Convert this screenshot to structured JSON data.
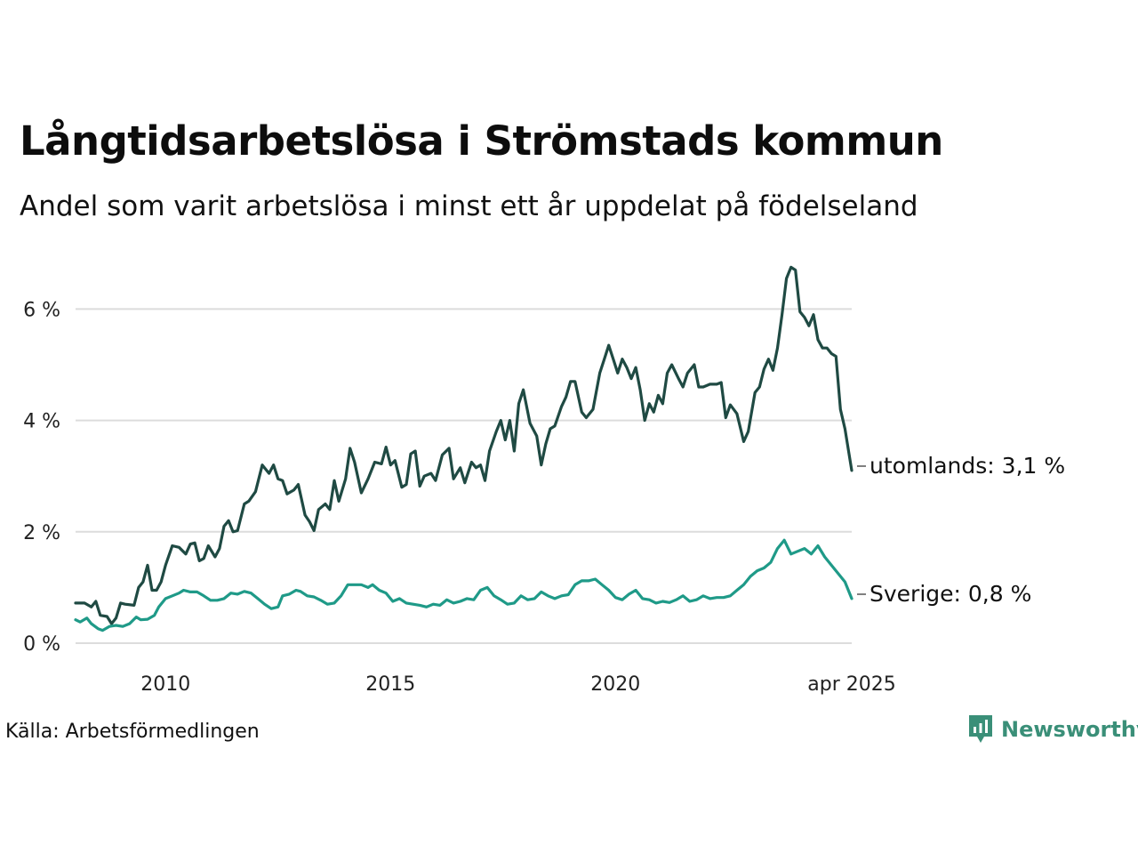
{
  "header": {
    "title": "Långtidsarbetslösa i Strömstads kommun",
    "subtitle": "Andel som varit arbetslösa i minst ett år uppdelat på födelseland"
  },
  "footer": {
    "source": "Källa: Arbetsförmedlingen",
    "brand": "Newsworthy",
    "brand_color": "#3a8f78"
  },
  "chart_data": {
    "type": "line",
    "y_ticks": [
      {
        "value": 0,
        "label": "0 %"
      },
      {
        "value": 2,
        "label": "2 %"
      },
      {
        "value": 4,
        "label": "4 %"
      },
      {
        "value": 6,
        "label": "6 %"
      }
    ],
    "x_ticks": [
      {
        "value": 2010,
        "label": "2010"
      },
      {
        "value": 2015,
        "label": "2015"
      },
      {
        "value": 2020,
        "label": "2020"
      },
      {
        "value": 2025.25,
        "label": "apr 2025"
      }
    ],
    "xlim": [
      2008.0,
      2025.25
    ],
    "ylim": [
      0,
      7
    ],
    "grid": true,
    "series": [
      {
        "name": "utomlands",
        "end_label": "utomlands: 3,1 %",
        "color": "#1f4a43",
        "points": [
          [
            2008.0,
            0.72
          ],
          [
            2008.2,
            0.72
          ],
          [
            2008.35,
            0.65
          ],
          [
            2008.45,
            0.75
          ],
          [
            2008.55,
            0.5
          ],
          [
            2008.7,
            0.48
          ],
          [
            2008.8,
            0.35
          ],
          [
            2008.9,
            0.45
          ],
          [
            2009.0,
            0.72
          ],
          [
            2009.1,
            0.7
          ],
          [
            2009.3,
            0.68
          ],
          [
            2009.4,
            1.0
          ],
          [
            2009.5,
            1.1
          ],
          [
            2009.6,
            1.4
          ],
          [
            2009.7,
            0.95
          ],
          [
            2009.8,
            0.95
          ],
          [
            2009.9,
            1.1
          ],
          [
            2010.0,
            1.4
          ],
          [
            2010.15,
            1.75
          ],
          [
            2010.3,
            1.72
          ],
          [
            2010.45,
            1.6
          ],
          [
            2010.55,
            1.78
          ],
          [
            2010.65,
            1.8
          ],
          [
            2010.75,
            1.48
          ],
          [
            2010.85,
            1.52
          ],
          [
            2010.95,
            1.75
          ],
          [
            2011.1,
            1.55
          ],
          [
            2011.2,
            1.7
          ],
          [
            2011.3,
            2.1
          ],
          [
            2011.4,
            2.2
          ],
          [
            2011.5,
            2.0
          ],
          [
            2011.6,
            2.02
          ],
          [
            2011.75,
            2.5
          ],
          [
            2011.85,
            2.55
          ],
          [
            2012.0,
            2.72
          ],
          [
            2012.15,
            3.2
          ],
          [
            2012.3,
            3.05
          ],
          [
            2012.4,
            3.2
          ],
          [
            2012.5,
            2.95
          ],
          [
            2012.6,
            2.92
          ],
          [
            2012.7,
            2.68
          ],
          [
            2012.85,
            2.75
          ],
          [
            2012.95,
            2.85
          ],
          [
            2013.1,
            2.3
          ],
          [
            2013.2,
            2.18
          ],
          [
            2013.3,
            2.02
          ],
          [
            2013.4,
            2.4
          ],
          [
            2013.55,
            2.5
          ],
          [
            2013.65,
            2.4
          ],
          [
            2013.75,
            2.92
          ],
          [
            2013.85,
            2.55
          ],
          [
            2014.0,
            2.95
          ],
          [
            2014.1,
            3.5
          ],
          [
            2014.2,
            3.25
          ],
          [
            2014.35,
            2.7
          ],
          [
            2014.5,
            2.95
          ],
          [
            2014.65,
            3.25
          ],
          [
            2014.8,
            3.22
          ],
          [
            2014.9,
            3.52
          ],
          [
            2015.0,
            3.2
          ],
          [
            2015.1,
            3.28
          ],
          [
            2015.25,
            2.8
          ],
          [
            2015.35,
            2.85
          ],
          [
            2015.45,
            3.4
          ],
          [
            2015.55,
            3.45
          ],
          [
            2015.65,
            2.82
          ],
          [
            2015.75,
            3.0
          ],
          [
            2015.9,
            3.05
          ],
          [
            2016.0,
            2.92
          ],
          [
            2016.15,
            3.38
          ],
          [
            2016.3,
            3.5
          ],
          [
            2016.4,
            2.95
          ],
          [
            2016.55,
            3.15
          ],
          [
            2016.65,
            2.88
          ],
          [
            2016.8,
            3.25
          ],
          [
            2016.9,
            3.15
          ],
          [
            2017.0,
            3.2
          ],
          [
            2017.1,
            2.92
          ],
          [
            2017.2,
            3.45
          ],
          [
            2017.35,
            3.8
          ],
          [
            2017.45,
            4.0
          ],
          [
            2017.55,
            3.65
          ],
          [
            2017.65,
            4.0
          ],
          [
            2017.75,
            3.45
          ],
          [
            2017.85,
            4.3
          ],
          [
            2017.95,
            4.55
          ],
          [
            2018.1,
            3.95
          ],
          [
            2018.25,
            3.72
          ],
          [
            2018.35,
            3.2
          ],
          [
            2018.45,
            3.58
          ],
          [
            2018.55,
            3.85
          ],
          [
            2018.65,
            3.9
          ],
          [
            2018.8,
            4.25
          ],
          [
            2018.9,
            4.42
          ],
          [
            2019.0,
            4.7
          ],
          [
            2019.1,
            4.7
          ],
          [
            2019.25,
            4.15
          ],
          [
            2019.35,
            4.05
          ],
          [
            2019.5,
            4.2
          ],
          [
            2019.65,
            4.85
          ],
          [
            2019.75,
            5.1
          ],
          [
            2019.85,
            5.35
          ],
          [
            2019.95,
            5.1
          ],
          [
            2020.05,
            4.85
          ],
          [
            2020.15,
            5.1
          ],
          [
            2020.25,
            4.95
          ],
          [
            2020.35,
            4.75
          ],
          [
            2020.45,
            4.95
          ],
          [
            2020.55,
            4.55
          ],
          [
            2020.65,
            4.0
          ],
          [
            2020.75,
            4.3
          ],
          [
            2020.85,
            4.15
          ],
          [
            2020.95,
            4.45
          ],
          [
            2021.05,
            4.3
          ],
          [
            2021.15,
            4.85
          ],
          [
            2021.25,
            5.0
          ],
          [
            2021.4,
            4.75
          ],
          [
            2021.5,
            4.6
          ],
          [
            2021.6,
            4.85
          ],
          [
            2021.75,
            5.0
          ],
          [
            2021.85,
            4.6
          ],
          [
            2021.95,
            4.6
          ],
          [
            2022.1,
            4.65
          ],
          [
            2022.25,
            4.65
          ],
          [
            2022.35,
            4.68
          ],
          [
            2022.45,
            4.05
          ],
          [
            2022.55,
            4.28
          ],
          [
            2022.7,
            4.12
          ],
          [
            2022.85,
            3.62
          ],
          [
            2022.95,
            3.8
          ],
          [
            2023.1,
            4.5
          ],
          [
            2023.2,
            4.6
          ],
          [
            2023.3,
            4.92
          ],
          [
            2023.4,
            5.1
          ],
          [
            2023.5,
            4.9
          ],
          [
            2023.6,
            5.3
          ],
          [
            2023.7,
            5.9
          ],
          [
            2023.8,
            6.55
          ],
          [
            2023.9,
            6.75
          ],
          [
            2024.0,
            6.7
          ],
          [
            2024.1,
            5.95
          ],
          [
            2024.2,
            5.85
          ],
          [
            2024.3,
            5.7
          ],
          [
            2024.4,
            5.9
          ],
          [
            2024.5,
            5.45
          ],
          [
            2024.6,
            5.3
          ],
          [
            2024.7,
            5.3
          ],
          [
            2024.8,
            5.2
          ],
          [
            2024.9,
            5.15
          ],
          [
            2025.0,
            4.2
          ],
          [
            2025.1,
            3.85
          ],
          [
            2025.25,
            3.1
          ]
        ]
      },
      {
        "name": "Sverige",
        "end_label": "Sverige: 0,8 %",
        "color": "#1f9a88",
        "points": [
          [
            2008.0,
            0.42
          ],
          [
            2008.1,
            0.38
          ],
          [
            2008.25,
            0.45
          ],
          [
            2008.35,
            0.35
          ],
          [
            2008.5,
            0.26
          ],
          [
            2008.6,
            0.23
          ],
          [
            2008.75,
            0.3
          ],
          [
            2008.9,
            0.32
          ],
          [
            2009.05,
            0.3
          ],
          [
            2009.2,
            0.35
          ],
          [
            2009.35,
            0.47
          ],
          [
            2009.45,
            0.42
          ],
          [
            2009.6,
            0.43
          ],
          [
            2009.75,
            0.5
          ],
          [
            2009.85,
            0.65
          ],
          [
            2010.0,
            0.8
          ],
          [
            2010.15,
            0.85
          ],
          [
            2010.3,
            0.9
          ],
          [
            2010.4,
            0.95
          ],
          [
            2010.55,
            0.92
          ],
          [
            2010.7,
            0.92
          ],
          [
            2010.85,
            0.85
          ],
          [
            2011.0,
            0.77
          ],
          [
            2011.15,
            0.77
          ],
          [
            2011.3,
            0.8
          ],
          [
            2011.45,
            0.9
          ],
          [
            2011.6,
            0.88
          ],
          [
            2011.75,
            0.93
          ],
          [
            2011.9,
            0.9
          ],
          [
            2012.05,
            0.8
          ],
          [
            2012.2,
            0.7
          ],
          [
            2012.35,
            0.62
          ],
          [
            2012.5,
            0.65
          ],
          [
            2012.6,
            0.85
          ],
          [
            2012.75,
            0.88
          ],
          [
            2012.9,
            0.95
          ],
          [
            2013.0,
            0.93
          ],
          [
            2013.15,
            0.85
          ],
          [
            2013.3,
            0.83
          ],
          [
            2013.45,
            0.77
          ],
          [
            2013.6,
            0.7
          ],
          [
            2013.75,
            0.72
          ],
          [
            2013.9,
            0.85
          ],
          [
            2014.05,
            1.05
          ],
          [
            2014.2,
            1.05
          ],
          [
            2014.35,
            1.05
          ],
          [
            2014.5,
            1.0
          ],
          [
            2014.6,
            1.05
          ],
          [
            2014.75,
            0.95
          ],
          [
            2014.9,
            0.9
          ],
          [
            2015.05,
            0.75
          ],
          [
            2015.2,
            0.8
          ],
          [
            2015.35,
            0.72
          ],
          [
            2015.5,
            0.7
          ],
          [
            2015.65,
            0.68
          ],
          [
            2015.8,
            0.65
          ],
          [
            2015.95,
            0.7
          ],
          [
            2016.1,
            0.68
          ],
          [
            2016.25,
            0.78
          ],
          [
            2016.4,
            0.72
          ],
          [
            2016.55,
            0.75
          ],
          [
            2016.7,
            0.8
          ],
          [
            2016.85,
            0.78
          ],
          [
            2017.0,
            0.95
          ],
          [
            2017.15,
            1.0
          ],
          [
            2017.3,
            0.85
          ],
          [
            2017.45,
            0.78
          ],
          [
            2017.6,
            0.7
          ],
          [
            2017.75,
            0.72
          ],
          [
            2017.9,
            0.85
          ],
          [
            2018.05,
            0.78
          ],
          [
            2018.2,
            0.8
          ],
          [
            2018.35,
            0.92
          ],
          [
            2018.5,
            0.85
          ],
          [
            2018.65,
            0.8
          ],
          [
            2018.8,
            0.85
          ],
          [
            2018.95,
            0.87
          ],
          [
            2019.1,
            1.05
          ],
          [
            2019.25,
            1.12
          ],
          [
            2019.4,
            1.12
          ],
          [
            2019.55,
            1.15
          ],
          [
            2019.7,
            1.05
          ],
          [
            2019.85,
            0.95
          ],
          [
            2020.0,
            0.82
          ],
          [
            2020.15,
            0.78
          ],
          [
            2020.3,
            0.88
          ],
          [
            2020.45,
            0.95
          ],
          [
            2020.6,
            0.8
          ],
          [
            2020.75,
            0.78
          ],
          [
            2020.9,
            0.72
          ],
          [
            2021.05,
            0.75
          ],
          [
            2021.2,
            0.73
          ],
          [
            2021.35,
            0.78
          ],
          [
            2021.5,
            0.85
          ],
          [
            2021.65,
            0.75
          ],
          [
            2021.8,
            0.78
          ],
          [
            2021.95,
            0.85
          ],
          [
            2022.1,
            0.8
          ],
          [
            2022.25,
            0.82
          ],
          [
            2022.4,
            0.82
          ],
          [
            2022.55,
            0.85
          ],
          [
            2022.7,
            0.95
          ],
          [
            2022.85,
            1.05
          ],
          [
            2023.0,
            1.2
          ],
          [
            2023.15,
            1.3
          ],
          [
            2023.3,
            1.35
          ],
          [
            2023.45,
            1.45
          ],
          [
            2023.6,
            1.7
          ],
          [
            2023.75,
            1.85
          ],
          [
            2023.9,
            1.6
          ],
          [
            2024.05,
            1.65
          ],
          [
            2024.2,
            1.7
          ],
          [
            2024.35,
            1.6
          ],
          [
            2024.5,
            1.75
          ],
          [
            2024.65,
            1.55
          ],
          [
            2024.8,
            1.4
          ],
          [
            2024.95,
            1.25
          ],
          [
            2025.1,
            1.1
          ],
          [
            2025.25,
            0.8
          ]
        ]
      }
    ]
  }
}
